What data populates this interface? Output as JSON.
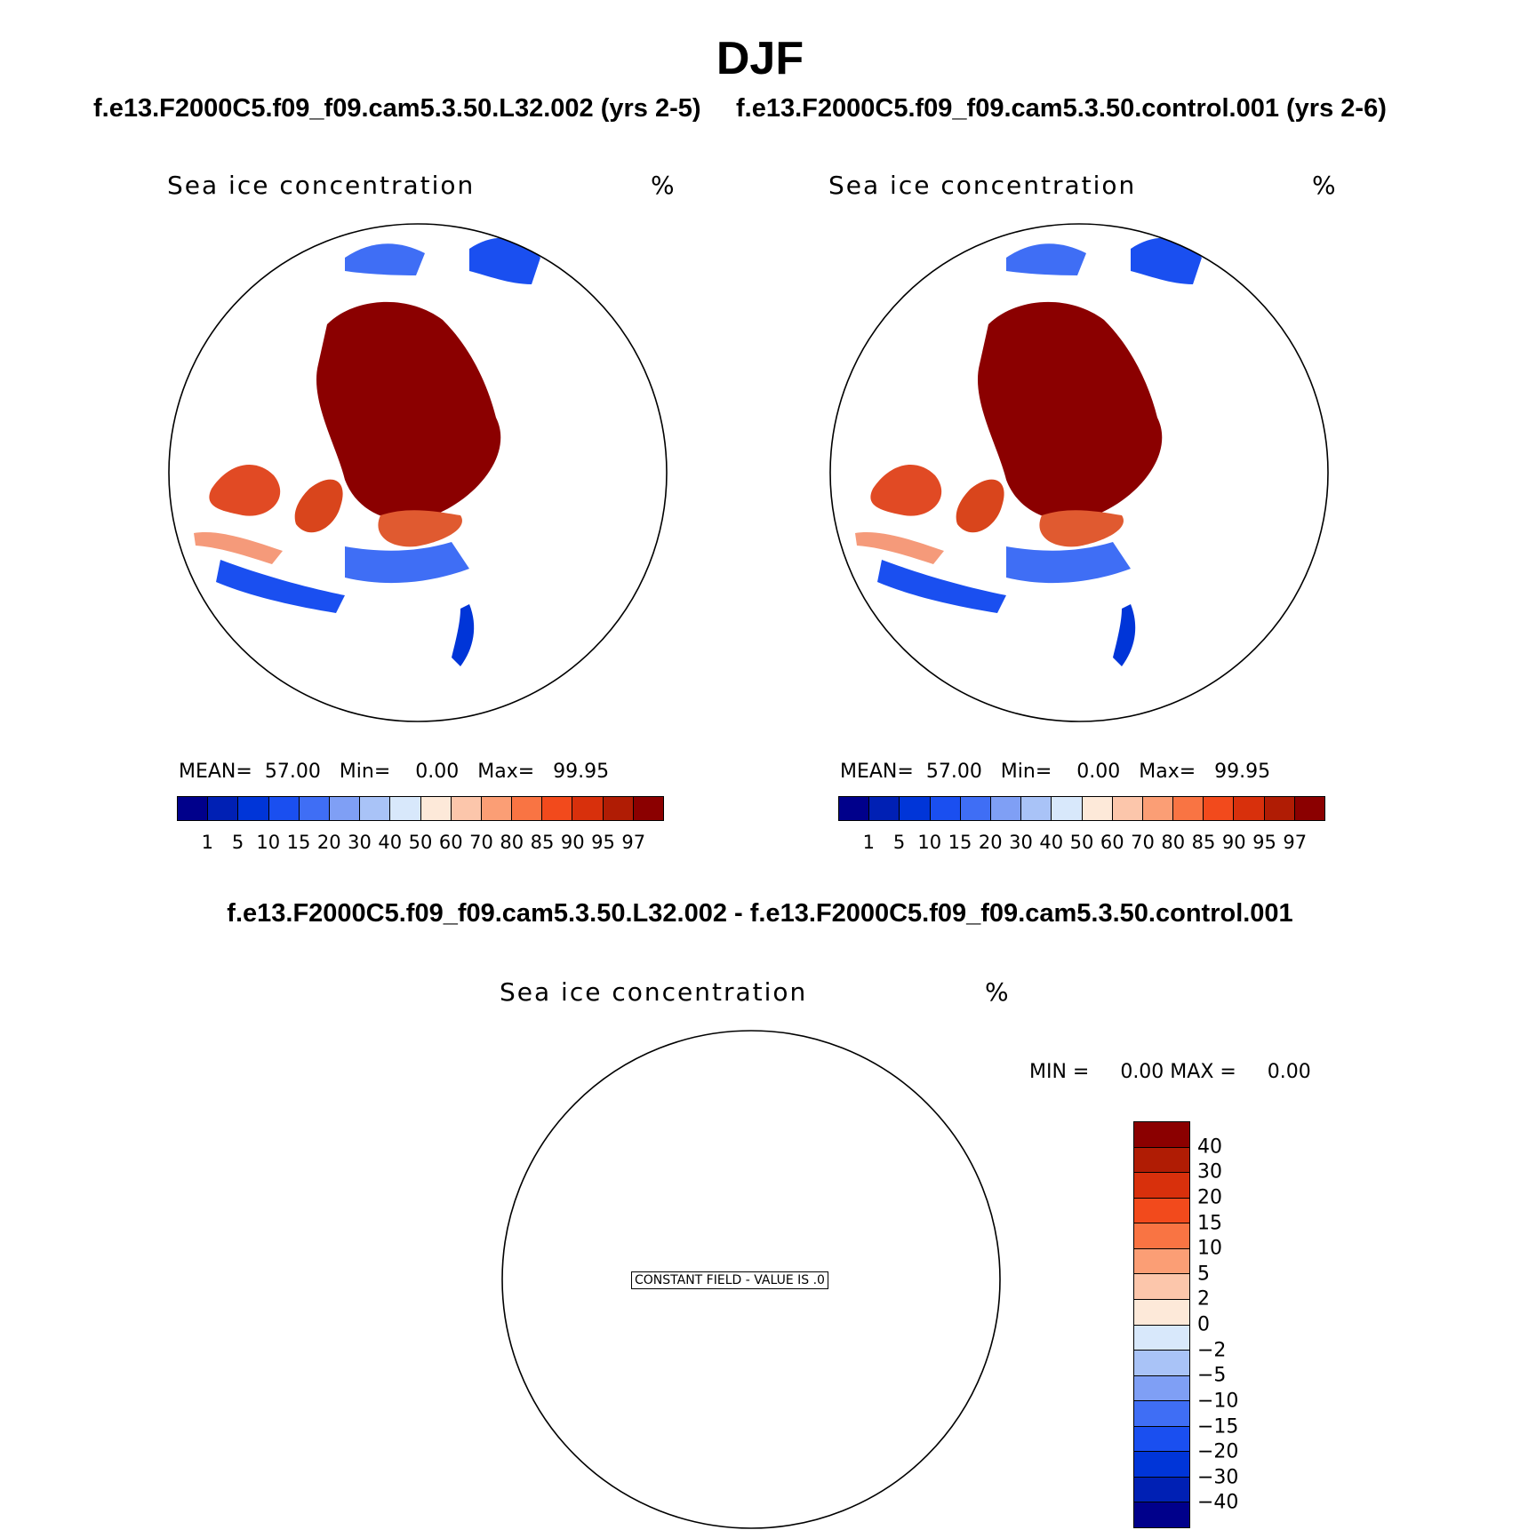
{
  "title": "DJF",
  "panels": {
    "left": {
      "case": "f.e13.F2000C5.f09_f09.cam5.3.50.L32.002 (yrs 2-5)",
      "variable": "Sea ice concentration",
      "units": "%",
      "stats": {
        "mean_label": "MEAN=",
        "mean": "57.00",
        "min_label": "Min=",
        "min": "0.00",
        "max_label": "Max=",
        "max": "99.95"
      }
    },
    "right": {
      "case": "f.e13.F2000C5.f09_f09.cam5.3.50.control.001 (yrs 2-6)",
      "variable": "Sea ice concentration",
      "units": "%",
      "stats": {
        "mean_label": "MEAN=",
        "mean": "57.00",
        "min_label": "Min=",
        "min": "0.00",
        "max_label": "Max=",
        "max": "99.95"
      }
    },
    "diff": {
      "case": "f.e13.F2000C5.f09_f09.cam5.3.50.L32.002 - f.e13.F2000C5.f09_f09.cam5.3.50.control.001",
      "variable": "Sea ice concentration",
      "units": "%",
      "minmax": "MIN =     0.00 MAX =     0.00",
      "constant_field": "CONSTANT FIELD - VALUE IS .0"
    }
  },
  "colorbar_main": {
    "ticks": [
      "1",
      "5",
      "10",
      "15",
      "20",
      "30",
      "40",
      "50",
      "60",
      "70",
      "80",
      "85",
      "90",
      "95",
      "97"
    ],
    "colors": [
      "#00008b",
      "#0020b4",
      "#0035d8",
      "#1a4ff0",
      "#3f6ef5",
      "#7f9ff5",
      "#a9c3f7",
      "#d8e8fb",
      "#fde9d9",
      "#fcc6ab",
      "#fb9e75",
      "#f97443",
      "#f24a1c",
      "#d8300c",
      "#b01c04",
      "#8b0000"
    ]
  },
  "colorbar_diff": {
    "ticks": [
      "40",
      "30",
      "20",
      "15",
      "10",
      "5",
      "2",
      "0",
      "−2",
      "−5",
      "−10",
      "−15",
      "−20",
      "−30",
      "−40"
    ],
    "colors": [
      "#8b0000",
      "#b01c04",
      "#d8300c",
      "#f24a1c",
      "#f97443",
      "#fb9e75",
      "#fcc6ab",
      "#fde9d9",
      "#d8e8fb",
      "#a9c3f7",
      "#7f9ff5",
      "#3f6ef5",
      "#1a4ff0",
      "#0035d8",
      "#0020b4",
      "#00008b"
    ]
  }
}
